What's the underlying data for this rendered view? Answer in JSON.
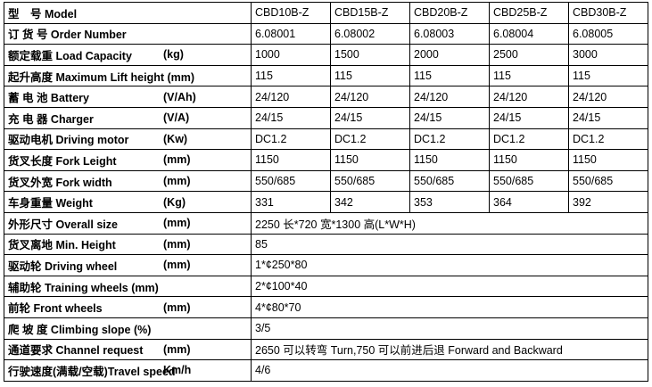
{
  "table": {
    "rows": [
      {
        "label": "型　号 Model",
        "values": [
          "CBD10B-Z",
          "CBD15B-Z",
          "CBD20B-Z",
          "CBD25B-Z",
          "CBD30B-Z"
        ]
      },
      {
        "label": "订 货 号 Order Number",
        "values": [
          "6.08001",
          "6.08002",
          "6.08003",
          "6.08004",
          "6.08005"
        ]
      },
      {
        "label": "额定载重 Load Capacity",
        "unit": "(kg)",
        "values": [
          "1000",
          "1500",
          "2000",
          "2500",
          "3000"
        ]
      },
      {
        "label": "起升高度 Maximum Lift height (mm)",
        "values": [
          "115",
          "115",
          "115",
          "115",
          "115"
        ]
      },
      {
        "label": "蓄 电 池 Battery",
        "unit": "(V/Ah)",
        "values": [
          "24/120",
          "24/120",
          "24/120",
          "24/120",
          "24/120"
        ]
      },
      {
        "label": "充 电 器 Charger",
        "unit": "(V/A)",
        "values": [
          "24/15",
          "24/15",
          "24/15",
          "24/15",
          "24/15"
        ]
      },
      {
        "label": "驱动电机 Driving motor",
        "unit": "(Kw)",
        "values": [
          "DC1.2",
          "DC1.2",
          "DC1.2",
          "DC1.2",
          "DC1.2"
        ]
      },
      {
        "label": "货叉长度 Fork Leight",
        "unit": "(mm)",
        "values": [
          "1150",
          "1150",
          "1150",
          "1150",
          "1150"
        ]
      },
      {
        "label": "货叉外宽 Fork width",
        "unit": "(mm)",
        "values": [
          "550/685",
          "550/685",
          "550/685",
          "550/685",
          "550/685"
        ]
      },
      {
        "label": "车身重量 Weight",
        "unit": "(Kg)",
        "values": [
          "331",
          "342",
          "353",
          "364",
          "392"
        ]
      },
      {
        "label": "外形尺寸 Overall size",
        "unit": "(mm)",
        "value": "2250 长*720 宽*1300 高(L*W*H)"
      },
      {
        "label": "货叉离地 Min. Height",
        "unit": "(mm)",
        "value": "85"
      },
      {
        "label": "驱动轮 Driving wheel",
        "unit": "(mm)",
        "value": "1*¢250*80"
      },
      {
        "label": "辅助轮 Training wheels (mm)",
        "value": "2*¢100*40"
      },
      {
        "label": "前轮 Front wheels",
        "unit": "(mm)",
        "value": "4*¢80*70"
      },
      {
        "label": "爬 坡 度 Climbing slope (%)",
        "value": "3/5"
      },
      {
        "label": "通道要求 Channel request",
        "unit": "(mm)",
        "value": "2650 可以转弯 Turn,750 可以前进后退 Forward and Backward"
      },
      {
        "label": "行驶速度(满载/空载)Travel speed",
        "unit": "Km/h",
        "value": "4/6"
      }
    ]
  }
}
